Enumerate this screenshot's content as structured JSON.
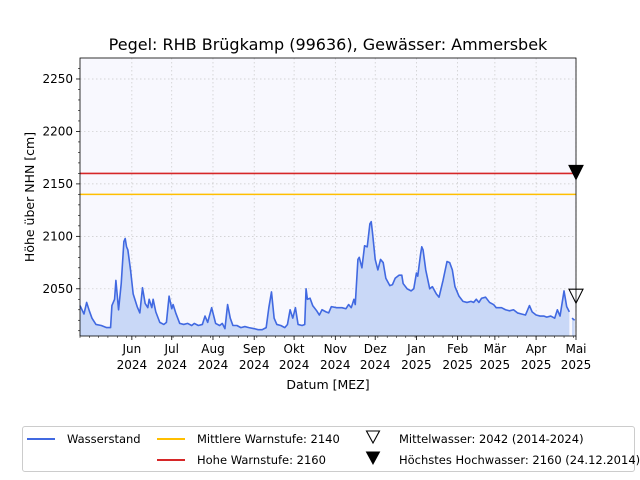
{
  "chart_data": {
    "type": "area",
    "title": "Pegel:  RHB Brügkamp (99636), Gewässer:  Ammersbek",
    "xlabel": "Datum [MEZ]",
    "ylabel": "Höhe über NHN [cm]",
    "ylim": [
      2005,
      2270
    ],
    "yticks": [
      2050,
      2100,
      2150,
      2200,
      2250
    ],
    "xlim": [
      "2024-04-23",
      "2025-05-01"
    ],
    "xticks": [
      {
        "date": "2024-06-01",
        "label": [
          "Jun",
          "2024"
        ]
      },
      {
        "date": "2024-07-01",
        "label": [
          "Jul",
          "2024"
        ]
      },
      {
        "date": "2024-08-01",
        "label": [
          "Aug",
          "2024"
        ]
      },
      {
        "date": "2024-09-01",
        "label": [
          "Sep",
          "2024"
        ]
      },
      {
        "date": "2024-10-01",
        "label": [
          "Okt",
          "2024"
        ]
      },
      {
        "date": "2024-11-01",
        "label": [
          "Nov",
          "2024"
        ]
      },
      {
        "date": "2024-12-01",
        "label": [
          "Dez",
          "2024"
        ]
      },
      {
        "date": "2025-01-01",
        "label": [
          "Jan",
          "2025"
        ]
      },
      {
        "date": "2025-02-01",
        "label": [
          "Feb",
          "2025"
        ]
      },
      {
        "date": "2025-03-01",
        "label": [
          "Mär",
          "2025"
        ]
      },
      {
        "date": "2025-04-01",
        "label": [
          "Apr",
          "2025"
        ]
      },
      {
        "date": "2025-05-01",
        "label": [
          "Mai",
          "2025"
        ]
      }
    ],
    "grid": true,
    "legend_position": "bottom",
    "series": [
      {
        "name": "Wasserstand",
        "color": "#4169e1",
        "fill": "#c9d8f7",
        "segments": [
          [
            [
              "2024-04-23",
              2034
            ],
            [
              "2024-04-26",
              2026
            ],
            [
              "2024-04-28",
              2037
            ],
            [
              "2024-04-30",
              2029
            ],
            [
              "2024-05-02",
              2022
            ],
            [
              "2024-05-05",
              2016
            ],
            [
              "2024-05-09",
              2015
            ],
            [
              "2024-05-13",
              2013
            ],
            [
              "2024-05-16",
              2013
            ],
            [
              "2024-05-17",
              2034
            ],
            [
              "2024-05-19",
              2040
            ],
            [
              "2024-05-20",
              2058
            ],
            [
              "2024-05-22",
              2030
            ],
            [
              "2024-05-24",
              2055
            ],
            [
              "2024-05-26",
              2095
            ],
            [
              "2024-05-27",
              2098
            ],
            [
              "2024-05-28",
              2090
            ],
            [
              "2024-05-29",
              2087
            ],
            [
              "2024-05-31",
              2068
            ],
            [
              "2024-06-02",
              2045
            ],
            [
              "2024-06-05",
              2033
            ],
            [
              "2024-06-07",
              2027
            ],
            [
              "2024-06-09",
              2051
            ],
            [
              "2024-06-11",
              2036
            ],
            [
              "2024-06-13",
              2032
            ],
            [
              "2024-06-14",
              2040
            ],
            [
              "2024-06-16",
              2032
            ],
            [
              "2024-06-17",
              2040
            ],
            [
              "2024-06-19",
              2028
            ],
            [
              "2024-06-22",
              2018
            ],
            [
              "2024-06-25",
              2016
            ],
            [
              "2024-06-27",
              2018
            ],
            [
              "2024-06-29",
              2043
            ],
            [
              "2024-07-01",
              2031
            ],
            [
              "2024-07-02",
              2035
            ],
            [
              "2024-07-04",
              2027
            ],
            [
              "2024-07-07",
              2017
            ],
            [
              "2024-07-10",
              2016
            ],
            [
              "2024-07-13",
              2017
            ],
            [
              "2024-07-16",
              2015
            ],
            [
              "2024-07-18",
              2017
            ],
            [
              "2024-07-21",
              2015
            ],
            [
              "2024-07-24",
              2016
            ],
            [
              "2024-07-26",
              2024
            ],
            [
              "2024-07-28",
              2018
            ],
            [
              "2024-07-31",
              2032
            ],
            [
              "2024-08-03",
              2017
            ],
            [
              "2024-08-06",
              2015
            ],
            [
              "2024-08-08",
              2017
            ],
            [
              "2024-08-10",
              2012
            ],
            [
              "2024-08-12",
              2035
            ],
            [
              "2024-08-14",
              2022
            ],
            [
              "2024-08-16",
              2015
            ],
            [
              "2024-08-19",
              2015
            ],
            [
              "2024-08-22",
              2013
            ],
            [
              "2024-08-25",
              2014
            ],
            [
              "2024-08-28",
              2013
            ],
            [
              "2024-09-01",
              2012
            ],
            [
              "2024-09-04",
              2011
            ],
            [
              "2024-09-07",
              2011
            ],
            [
              "2024-09-10",
              2013
            ],
            [
              "2024-09-12",
              2032
            ],
            [
              "2024-09-14",
              2047
            ],
            [
              "2024-09-16",
              2022
            ],
            [
              "2024-09-18",
              2016
            ],
            [
              "2024-09-21",
              2015
            ],
            [
              "2024-09-24",
              2013
            ],
            [
              "2024-09-26",
              2016
            ],
            [
              "2024-09-28",
              2030
            ],
            [
              "2024-09-30",
              2022
            ],
            [
              "2024-10-02",
              2032
            ],
            [
              "2024-10-04",
              2016
            ],
            [
              "2024-10-07",
              2015
            ],
            [
              "2024-10-09",
              2016
            ],
            [
              "2024-10-10",
              2050
            ],
            [
              "2024-10-11",
              2040
            ],
            [
              "2024-10-13",
              2041
            ],
            [
              "2024-10-15",
              2034
            ],
            [
              "2024-10-18",
              2029
            ],
            [
              "2024-10-20",
              2025
            ],
            [
              "2024-10-22",
              2030
            ],
            [
              "2024-10-25",
              2028
            ],
            [
              "2024-10-27",
              2027
            ],
            [
              "2024-10-29",
              2033
            ],
            [
              "2024-11-02",
              2032
            ],
            [
              "2024-11-06",
              2032
            ],
            [
              "2024-11-09",
              2031
            ],
            [
              "2024-11-11",
              2035
            ],
            [
              "2024-11-13",
              2032
            ],
            [
              "2024-11-15",
              2040
            ],
            [
              "2024-11-16",
              2035
            ],
            [
              "2024-11-18",
              2078
            ],
            [
              "2024-11-19",
              2080
            ],
            [
              "2024-11-21",
              2070
            ],
            [
              "2024-11-23",
              2091
            ],
            [
              "2024-11-25",
              2090
            ],
            [
              "2024-11-27",
              2112
            ],
            [
              "2024-11-28",
              2114
            ],
            [
              "2024-11-29",
              2103
            ],
            [
              "2024-12-01",
              2078
            ],
            [
              "2024-12-03",
              2068
            ],
            [
              "2024-12-05",
              2078
            ],
            [
              "2024-12-07",
              2075
            ],
            [
              "2024-12-09",
              2060
            ],
            [
              "2024-12-12",
              2053
            ],
            [
              "2024-12-14",
              2054
            ],
            [
              "2024-12-16",
              2060
            ],
            [
              "2024-12-19",
              2063
            ],
            [
              "2024-12-21",
              2063
            ],
            [
              "2024-12-22",
              2055
            ],
            [
              "2024-12-25",
              2050
            ],
            [
              "2024-12-28",
              2048
            ],
            [
              "2024-12-30",
              2050
            ],
            [
              "2025-01-01",
              2065
            ],
            [
              "2025-01-02",
              2062
            ],
            [
              "2025-01-04",
              2082
            ],
            [
              "2025-01-05",
              2090
            ],
            [
              "2025-01-06",
              2087
            ],
            [
              "2025-01-08",
              2068
            ],
            [
              "2025-01-11",
              2050
            ],
            [
              "2025-01-13",
              2052
            ],
            [
              "2025-01-16",
              2045
            ],
            [
              "2025-01-18",
              2042
            ],
            [
              "2025-01-21",
              2058
            ],
            [
              "2025-01-24",
              2076
            ],
            [
              "2025-01-26",
              2075
            ],
            [
              "2025-01-28",
              2068
            ],
            [
              "2025-01-30",
              2052
            ],
            [
              "2025-02-02",
              2043
            ],
            [
              "2025-02-05",
              2038
            ],
            [
              "2025-02-08",
              2037
            ],
            [
              "2025-02-11",
              2038
            ],
            [
              "2025-02-13",
              2037
            ],
            [
              "2025-02-15",
              2040
            ],
            [
              "2025-02-17",
              2037
            ],
            [
              "2025-02-19",
              2041
            ],
            [
              "2025-02-22",
              2042
            ],
            [
              "2025-02-25",
              2037
            ],
            [
              "2025-02-28",
              2035
            ],
            [
              "2025-03-02",
              2032
            ],
            [
              "2025-03-06",
              2032
            ],
            [
              "2025-03-09",
              2030
            ],
            [
              "2025-03-12",
              2029
            ],
            [
              "2025-03-15",
              2030
            ],
            [
              "2025-03-18",
              2027
            ],
            [
              "2025-03-21",
              2026
            ],
            [
              "2025-03-24",
              2025
            ],
            [
              "2025-03-27",
              2034
            ],
            [
              "2025-03-29",
              2028
            ],
            [
              "2025-04-01",
              2025
            ],
            [
              "2025-04-04",
              2024
            ],
            [
              "2025-04-07",
              2024
            ],
            [
              "2025-04-09",
              2023
            ],
            [
              "2025-04-12",
              2024
            ],
            [
              "2025-04-15",
              2022
            ],
            [
              "2025-04-17",
              2030
            ],
            [
              "2025-04-19",
              2024
            ],
            [
              "2025-04-22",
              2048
            ],
            [
              "2025-04-24",
              2033
            ],
            [
              "2025-04-26",
              2028
            ]
          ],
          [
            [
              "2025-04-28",
              2022
            ],
            [
              "2025-04-30",
              2020
            ]
          ]
        ]
      },
      {
        "name": "Mittlere Warnstufe: 2140",
        "color": "#ffbf00",
        "value": 2140
      },
      {
        "name": "Hohe Warnstufe: 2160",
        "color": "#d62728",
        "value": 2160
      }
    ],
    "markers": [
      {
        "name": "Mittelwasser: 2042 (2014-2024)",
        "value": 2042,
        "style": "open-triangle-down"
      },
      {
        "name": "Höchstes Hochwasser: 2160 (24.12.2014)",
        "value": 2160,
        "style": "filled-triangle-down"
      }
    ]
  }
}
